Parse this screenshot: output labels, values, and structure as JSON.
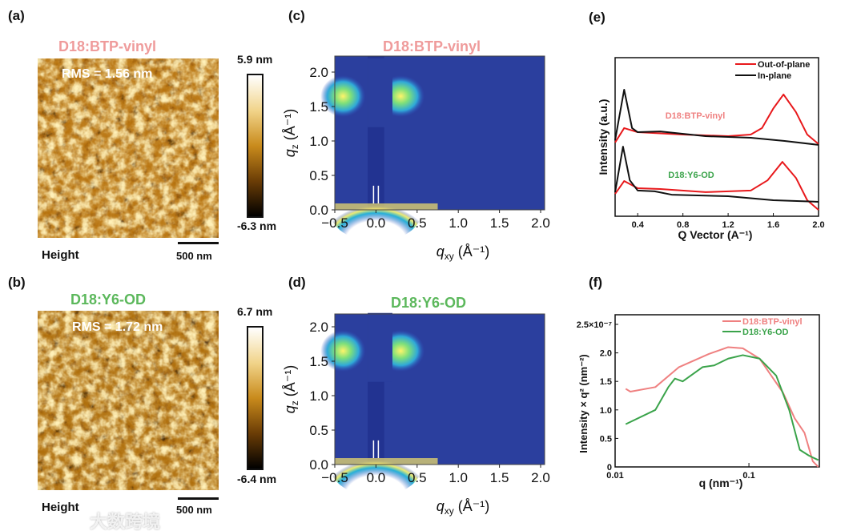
{
  "panels": {
    "a": {
      "label": "(a)",
      "title": "D18:BTP-vinyl",
      "rms": "RMS = 1.56 nm",
      "cbar_max": "5.9 nm",
      "cbar_min": "-6.3 nm",
      "channel": "Height",
      "scale": "500 nm"
    },
    "b": {
      "label": "(b)",
      "title": "D18:Y6-OD",
      "rms": "RMS = 1.72 nm",
      "cbar_max": "6.7 nm",
      "cbar_min": "-6.4 nm",
      "channel": "Height",
      "scale": "500 nm"
    },
    "c": {
      "label": "(c)",
      "title": "D18:BTP-vinyl"
    },
    "d": {
      "label": "(d)",
      "title": "D18:Y6-OD"
    },
    "e": {
      "label": "(e)"
    },
    "f": {
      "label": "(f)"
    }
  },
  "giwaxs_axes": {
    "xticks": [
      "−0.5",
      "0.0",
      "0.5",
      "1.0",
      "1.5",
      "2.0"
    ],
    "yticks": [
      "0.0",
      "0.5",
      "1.0",
      "1.5",
      "2.0"
    ],
    "xlabel": "q",
    "xlabel_sub": "xy",
    "xlabel_unit": " (Å⁻¹)",
    "ylabel": "q",
    "ylabel_sub": "z",
    "ylabel_unit": " (Å⁻¹)"
  },
  "colors": {
    "out_of_plane": "#e8191c",
    "in_plane": "#111111",
    "btp": "#ef8080",
    "y6": "#3aa34a"
  },
  "watermark": "大数跨境",
  "chart_data": [
    {
      "type": "line",
      "panel": "e",
      "xlabel": "Q Vector (A⁻¹)",
      "ylabel": "Intensity (a.u.)",
      "xlim": [
        0.2,
        2.0
      ],
      "ylim": [
        0,
        10
      ],
      "xticks": [
        "0.4",
        "0.8",
        "1.2",
        "1.6",
        "2.0"
      ],
      "legend": [
        "Out-of-plane",
        "In-plane"
      ],
      "legend_position": "top-right",
      "annotations": [
        "D18:BTP-vinyl",
        "D18:Y6-OD"
      ],
      "series": [
        {
          "name": "D18:BTP-vinyl Out-of-plane",
          "kind": "out_of_plane",
          "x": [
            0.2,
            0.28,
            0.4,
            0.8,
            1.2,
            1.4,
            1.5,
            1.6,
            1.69,
            1.8,
            1.9,
            2.0
          ],
          "y": [
            4.65,
            5.56,
            5.3,
            5.15,
            5.05,
            5.15,
            5.56,
            6.8,
            7.68,
            6.57,
            5.15,
            4.55
          ]
        },
        {
          "name": "D18:BTP-vinyl In-plane",
          "kind": "in_plane",
          "x": [
            0.2,
            0.28,
            0.35,
            0.4,
            0.6,
            1.0,
            1.4,
            1.7,
            2.0
          ],
          "y": [
            4.8,
            7.98,
            5.56,
            5.3,
            5.35,
            5.05,
            4.95,
            4.75,
            4.5
          ]
        },
        {
          "name": "D18:Y6-OD Out-of-plane",
          "kind": "out_of_plane",
          "x": [
            0.2,
            0.28,
            0.4,
            0.6,
            1.0,
            1.4,
            1.55,
            1.68,
            1.8,
            1.9,
            2.0
          ],
          "y": [
            1.41,
            2.22,
            1.77,
            1.72,
            1.52,
            1.62,
            2.27,
            3.43,
            2.42,
            1.01,
            0.4
          ]
        },
        {
          "name": "D18:Y6-OD In-plane",
          "kind": "in_plane",
          "x": [
            0.2,
            0.27,
            0.33,
            0.4,
            0.55,
            0.7,
            1.2,
            1.6,
            2.0
          ],
          "y": [
            1.52,
            4.39,
            2.27,
            1.62,
            1.57,
            1.36,
            1.26,
            1.01,
            0.91
          ]
        }
      ]
    },
    {
      "type": "line",
      "panel": "f",
      "xscale": "log",
      "xlabel": "q (nm⁻¹)",
      "ylabel": "Intensity × q² (nm⁻²)",
      "xlim": [
        0.01,
        0.336
      ],
      "ylim": [
        0,
        2.5
      ],
      "xticks": [
        "0.01",
        "0.1"
      ],
      "yticks": [
        "0",
        "0.5",
        "1.0",
        "1.5",
        "2.0",
        "2.5×10⁻⁷"
      ],
      "legend": [
        "D18:BTP-vinyl",
        "D18:Y6-OD"
      ],
      "legend_position": "top-right",
      "series": [
        {
          "name": "D18:BTP-vinyl",
          "kind": "btp",
          "x": [
            0.012,
            0.013,
            0.02,
            0.03,
            0.05,
            0.07,
            0.09,
            0.12,
            0.18,
            0.22,
            0.26,
            0.3,
            0.33
          ],
          "y": [
            1.37,
            1.32,
            1.4,
            1.75,
            1.98,
            2.1,
            2.08,
            1.9,
            1.3,
            0.85,
            0.6,
            0.1,
            0
          ]
        },
        {
          "name": "D18:Y6-OD",
          "kind": "y6",
          "x": [
            0.012,
            0.02,
            0.025,
            0.028,
            0.032,
            0.045,
            0.055,
            0.07,
            0.09,
            0.12,
            0.16,
            0.2,
            0.24,
            0.28,
            0.33
          ],
          "y": [
            0.75,
            1.0,
            1.4,
            1.55,
            1.5,
            1.75,
            1.78,
            1.9,
            1.96,
            1.9,
            1.6,
            1.0,
            0.3,
            0.2,
            0.12
          ]
        }
      ]
    }
  ]
}
